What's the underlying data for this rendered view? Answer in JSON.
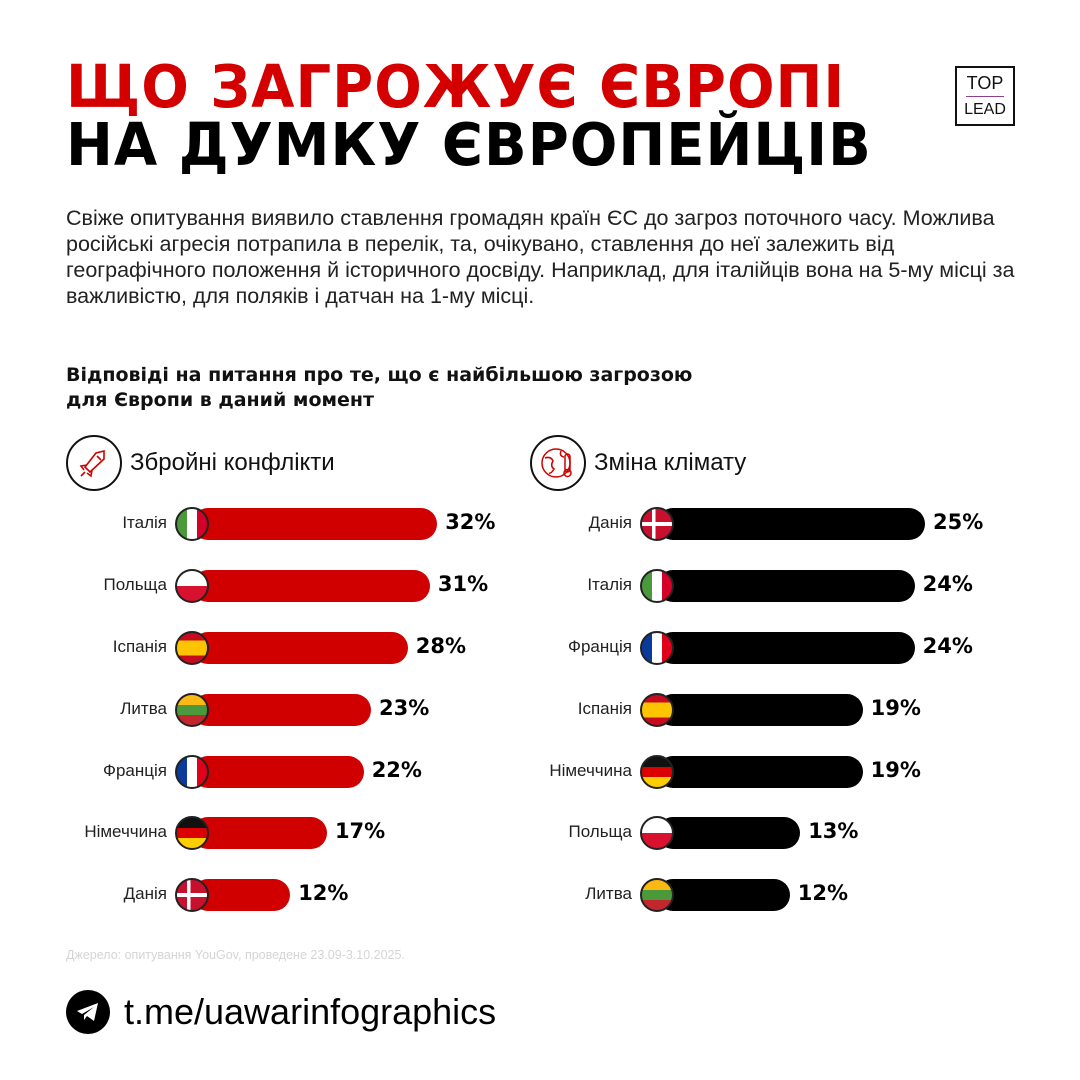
{
  "title_line1": "ЩО ЗАГРОЖУЄ ЄВРОПІ",
  "title_line2": "НА ДУМКУ ЄВРОПЕЙЦІВ",
  "logo": {
    "top": "TOP",
    "bottom": "LEAD"
  },
  "description": "Свіже опитування виявило ставлення громадян країн ЄС до загроз поточного часу. Можлива російські агресія потрапила в перелік, та, очікувано, ставлення до неї залежить від географічного положення й історичного досвіду. Наприклад, для італійців вона на 5-му місці за важливістю, для поляків і датчан на 1-му місці.",
  "subtitle_line1": "Відповіді на питання про те, що є найбільшою загрозою",
  "subtitle_line2": "для Європи в даний момент",
  "source": "Джерело: опитування YouGov, проведене 23.09-3.10.2025.",
  "telegram": "t.me/uawarinfographics",
  "colors": {
    "red": "#d00000",
    "black": "#000000"
  },
  "chart_data": [
    {
      "type": "bar",
      "orientation": "horizontal",
      "title": "Збройні конфлікти",
      "icon": "missile-icon",
      "color": "#d00000",
      "unit": "%",
      "categories": [
        "Італія",
        "Польща",
        "Іспанія",
        "Литва",
        "Франція",
        "Німеччина",
        "Данія"
      ],
      "flags": [
        "it",
        "pl",
        "es",
        "lt",
        "fr",
        "de",
        "dk"
      ],
      "values": [
        32,
        31,
        28,
        23,
        22,
        17,
        12
      ]
    },
    {
      "type": "bar",
      "orientation": "horizontal",
      "title": "Зміна клімату",
      "icon": "globe-thermometer-icon",
      "color": "#000000",
      "unit": "%",
      "categories": [
        "Данія",
        "Італія",
        "Франція",
        "Іспанія",
        "Німеччина",
        "Польща",
        "Литва"
      ],
      "flags": [
        "dk",
        "it",
        "fr",
        "es",
        "de",
        "pl",
        "lt"
      ],
      "values": [
        25,
        24,
        24,
        19,
        19,
        13,
        12
      ]
    }
  ]
}
